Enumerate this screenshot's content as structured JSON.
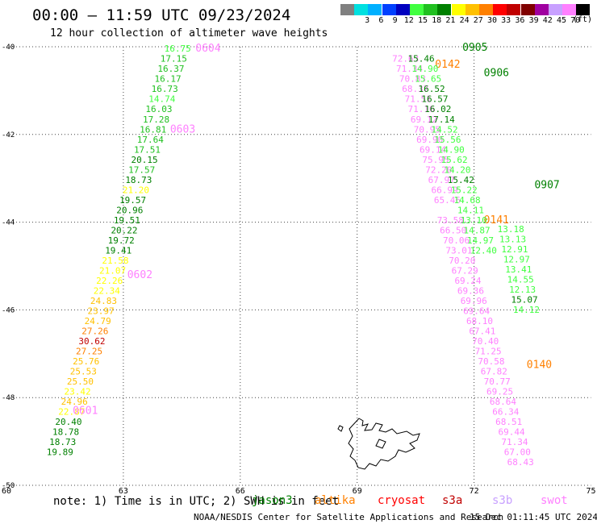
{
  "title": "00:00 – 11:59 UTC 09/23/2024",
  "subtitle": "12 hour collection of altimeter wave heights",
  "scale": {
    "unit": "(ft)",
    "bins": [
      {
        "label": "",
        "color": "#808080"
      },
      {
        "label": "3",
        "color": "#00e0e0"
      },
      {
        "label": "6",
        "color": "#00b0ff"
      },
      {
        "label": "9",
        "color": "#0040ff"
      },
      {
        "label": "12",
        "color": "#0000c0"
      },
      {
        "label": "15",
        "color": "#40ff40"
      },
      {
        "label": "18",
        "color": "#20c020"
      },
      {
        "label": "21",
        "color": "#008000"
      },
      {
        "label": "24",
        "color": "#ffff00"
      },
      {
        "label": "27",
        "color": "#ffc000"
      },
      {
        "label": "30",
        "color": "#ff8000"
      },
      {
        "label": "33",
        "color": "#ff0000"
      },
      {
        "label": "36",
        "color": "#c00000"
      },
      {
        "label": "39",
        "color": "#800000"
      },
      {
        "label": "42",
        "color": "#a000a0"
      },
      {
        "label": "45",
        "color": "#c8a0ff"
      },
      {
        "label": "70",
        "color": "#ff80ff"
      },
      {
        "label": "",
        "color": "#000000"
      }
    ]
  },
  "axes": {
    "lon_ticks": [
      "60",
      "63",
      "66",
      "69",
      "72",
      "75"
    ],
    "lat_ticks": [
      "-40",
      "-42",
      "-44",
      "-46",
      "-48",
      "-50"
    ]
  },
  "tracks": [
    {
      "time": "0601",
      "color": "#ff80ff",
      "points": [
        {
          "v": "16.75",
          "lon": 64.05,
          "lat": -40.04,
          "c": "#40ff40"
        },
        {
          "v": "17.15",
          "lon": 63.95,
          "lat": -40.27,
          "c": "#20c020"
        },
        {
          "v": "16.37",
          "lon": 63.88,
          "lat": -40.5,
          "c": "#20c020"
        },
        {
          "v": "16.17",
          "lon": 63.8,
          "lat": -40.73,
          "c": "#20c020"
        },
        {
          "v": "16.73",
          "lon": 63.72,
          "lat": -40.96,
          "c": "#20c020"
        },
        {
          "v": "14.74",
          "lon": 63.65,
          "lat": -41.19,
          "c": "#40ff40"
        },
        {
          "v": "16.03",
          "lon": 63.57,
          "lat": -41.42,
          "c": "#20c020"
        },
        {
          "v": "17.28",
          "lon": 63.5,
          "lat": -41.65,
          "c": "#20c020"
        },
        {
          "v": "16.81",
          "lon": 63.42,
          "lat": -41.88,
          "c": "#20c020"
        },
        {
          "v": "17.64",
          "lon": 63.35,
          "lat": -42.11,
          "c": "#20c020"
        },
        {
          "v": "17.51",
          "lon": 63.27,
          "lat": -42.34,
          "c": "#20c020"
        },
        {
          "v": "20.15",
          "lon": 63.2,
          "lat": -42.57,
          "c": "#008000"
        },
        {
          "v": "17.57",
          "lon": 63.13,
          "lat": -42.8,
          "c": "#20c020"
        },
        {
          "v": "18.73",
          "lon": 63.05,
          "lat": -43.03,
          "c": "#008000"
        },
        {
          "v": "21.20",
          "lon": 62.98,
          "lat": -43.26,
          "c": "#ffff00"
        },
        {
          "v": "19.57",
          "lon": 62.9,
          "lat": -43.49,
          "c": "#008000"
        },
        {
          "v": "20.96",
          "lon": 62.82,
          "lat": -43.72,
          "c": "#008000"
        },
        {
          "v": "19.51",
          "lon": 62.75,
          "lat": -43.95,
          "c": "#008000"
        },
        {
          "v": "20.22",
          "lon": 62.68,
          "lat": -44.18,
          "c": "#008000"
        },
        {
          "v": "19.72",
          "lon": 62.6,
          "lat": -44.41,
          "c": "#008000"
        },
        {
          "v": "19.41",
          "lon": 62.53,
          "lat": -44.64,
          "c": "#008000"
        },
        {
          "v": "21.58",
          "lon": 62.45,
          "lat": -44.87,
          "c": "#ffff00"
        },
        {
          "v": "21.07",
          "lon": 62.38,
          "lat": -45.1,
          "c": "#ffff00"
        },
        {
          "v": "22.26",
          "lon": 62.3,
          "lat": -45.33,
          "c": "#ffff00"
        },
        {
          "v": "22.34",
          "lon": 62.23,
          "lat": -45.56,
          "c": "#ffff00"
        },
        {
          "v": "24.83",
          "lon": 62.15,
          "lat": -45.79,
          "c": "#ffc000"
        },
        {
          "v": "23.97",
          "lon": 62.08,
          "lat": -46.02,
          "c": "#ffc000"
        },
        {
          "v": "24.79",
          "lon": 62.0,
          "lat": -46.25,
          "c": "#ffc000"
        },
        {
          "v": "27.26",
          "lon": 61.93,
          "lat": -46.48,
          "c": "#ff8000"
        },
        {
          "v": "30.62",
          "lon": 61.85,
          "lat": -46.71,
          "c": "#c00000"
        },
        {
          "v": "27.25",
          "lon": 61.78,
          "lat": -46.94,
          "c": "#ff8000"
        },
        {
          "v": "25.76",
          "lon": 61.7,
          "lat": -47.17,
          "c": "#ffc000"
        },
        {
          "v": "25.53",
          "lon": 61.63,
          "lat": -47.4,
          "c": "#ffc000"
        },
        {
          "v": "25.50",
          "lon": 61.55,
          "lat": -47.63,
          "c": "#ffc000"
        },
        {
          "v": "23.42",
          "lon": 61.48,
          "lat": -47.86,
          "c": "#ffff00"
        },
        {
          "v": "24.96",
          "lon": 61.4,
          "lat": -48.09,
          "c": "#ffc000"
        },
        {
          "v": "22.87",
          "lon": 61.33,
          "lat": -48.32,
          "c": "#ffff00"
        },
        {
          "v": "20.40",
          "lon": 61.25,
          "lat": -48.55,
          "c": "#008000"
        },
        {
          "v": "18.78",
          "lon": 61.18,
          "lat": -48.78,
          "c": "#008000"
        },
        {
          "v": "18.73",
          "lon": 61.1,
          "lat": -49.01,
          "c": "#008000"
        },
        {
          "v": "19.89",
          "lon": 61.03,
          "lat": -49.24,
          "c": "#008000"
        }
      ],
      "labels": [
        {
          "text": "0604",
          "lon": 64.85,
          "lat": -40.04,
          "c": "#ff80ff"
        },
        {
          "text": "0603",
          "lon": 64.2,
          "lat": -41.88,
          "c": "#ff80ff"
        },
        {
          "text": "0602",
          "lon": 63.1,
          "lat": -45.2,
          "c": "#ff80ff"
        },
        {
          "text": "0601",
          "lon": 61.7,
          "lat": -48.3,
          "c": "#ff80ff"
        }
      ]
    },
    {
      "time": "0140",
      "color": "#ff8000",
      "points": [
        {
          "v": "72.63",
          "lon": 69.9,
          "lat": -40.27,
          "c": "#ff80ff"
        },
        {
          "v": "71.34",
          "lon": 70.0,
          "lat": -40.5,
          "c": "#ff80ff"
        },
        {
          "v": "70.83",
          "lon": 70.08,
          "lat": -40.73,
          "c": "#ff80ff"
        },
        {
          "v": "68.37",
          "lon": 70.15,
          "lat": -40.96,
          "c": "#ff80ff"
        },
        {
          "v": "71.51",
          "lon": 70.22,
          "lat": -41.19,
          "c": "#ff80ff"
        },
        {
          "v": "71.16",
          "lon": 70.3,
          "lat": -41.42,
          "c": "#ff80ff"
        },
        {
          "v": "69.12",
          "lon": 70.37,
          "lat": -41.65,
          "c": "#ff80ff"
        },
        {
          "v": "70.95",
          "lon": 70.45,
          "lat": -41.88,
          "c": "#ff80ff"
        },
        {
          "v": "69.90",
          "lon": 70.52,
          "lat": -42.11,
          "c": "#ff80ff"
        },
        {
          "v": "69.14",
          "lon": 70.6,
          "lat": -42.34,
          "c": "#ff80ff"
        },
        {
          "v": "75.95",
          "lon": 70.67,
          "lat": -42.57,
          "c": "#ff80ff"
        },
        {
          "v": "72.20",
          "lon": 70.75,
          "lat": -42.8,
          "c": "#ff80ff"
        },
        {
          "v": "67.97",
          "lon": 70.82,
          "lat": -43.03,
          "c": "#ff80ff"
        },
        {
          "v": "66.99",
          "lon": 70.9,
          "lat": -43.26,
          "c": "#ff80ff"
        },
        {
          "v": "65.46",
          "lon": 70.97,
          "lat": -43.49,
          "c": "#ff80ff"
        },
        {
          "v": "73.58",
          "lon": 71.05,
          "lat": -43.95,
          "c": "#ff80ff"
        },
        {
          "v": "66.50",
          "lon": 71.12,
          "lat": -44.18,
          "c": "#ff80ff"
        },
        {
          "v": "70.06",
          "lon": 71.2,
          "lat": -44.41,
          "c": "#ff80ff"
        },
        {
          "v": "73.01",
          "lon": 71.27,
          "lat": -44.64,
          "c": "#ff80ff"
        },
        {
          "v": "70.20",
          "lon": 71.35,
          "lat": -44.87,
          "c": "#ff80ff"
        },
        {
          "v": "67.29",
          "lon": 71.42,
          "lat": -45.1,
          "c": "#ff80ff"
        },
        {
          "v": "69.24",
          "lon": 71.5,
          "lat": -45.33,
          "c": "#ff80ff"
        },
        {
          "v": "69.36",
          "lon": 71.57,
          "lat": -45.56,
          "c": "#ff80ff"
        },
        {
          "v": "69.96",
          "lon": 71.65,
          "lat": -45.79,
          "c": "#ff80ff"
        },
        {
          "v": "69.64",
          "lon": 71.72,
          "lat": -46.02,
          "c": "#ff80ff"
        },
        {
          "v": "68.10",
          "lon": 71.8,
          "lat": -46.25,
          "c": "#ff80ff"
        },
        {
          "v": "67.41",
          "lon": 71.87,
          "lat": -46.48,
          "c": "#ff80ff"
        },
        {
          "v": "70.40",
          "lon": 71.95,
          "lat": -46.71,
          "c": "#ff80ff"
        },
        {
          "v": "71.25",
          "lon": 72.02,
          "lat": -46.94,
          "c": "#ff80ff"
        },
        {
          "v": "70.58",
          "lon": 72.1,
          "lat": -47.17,
          "c": "#ff80ff"
        },
        {
          "v": "67.82",
          "lon": 72.17,
          "lat": -47.4,
          "c": "#ff80ff"
        },
        {
          "v": "70.77",
          "lon": 72.25,
          "lat": -47.63,
          "c": "#ff80ff"
        },
        {
          "v": "69.25",
          "lon": 72.32,
          "lat": -47.86,
          "c": "#ff80ff"
        },
        {
          "v": "68.64",
          "lon": 72.4,
          "lat": -48.09,
          "c": "#ff80ff"
        },
        {
          "v": "66.34",
          "lon": 72.47,
          "lat": -48.32,
          "c": "#ff80ff"
        },
        {
          "v": "68.51",
          "lon": 72.55,
          "lat": -48.55,
          "c": "#ff80ff"
        },
        {
          "v": "69.44",
          "lon": 72.62,
          "lat": -48.78,
          "c": "#ff80ff"
        },
        {
          "v": "71.34",
          "lon": 72.7,
          "lat": -49.01,
          "c": "#ff80ff"
        },
        {
          "v": "67.00",
          "lon": 72.77,
          "lat": -49.24,
          "c": "#ff80ff"
        },
        {
          "v": "68.43",
          "lon": 72.85,
          "lat": -49.47,
          "c": "#ff80ff"
        }
      ],
      "labels": [
        {
          "text": "0142",
          "lon": 71.0,
          "lat": -40.4,
          "c": "#ff8000"
        },
        {
          "text": "0141",
          "lon": 72.25,
          "lat": -43.95,
          "c": "#ff8000"
        },
        {
          "text": "0140",
          "lon": 73.35,
          "lat": -47.25,
          "c": "#ff8000"
        }
      ]
    },
    {
      "time": "0905",
      "color": "#008000",
      "points": [
        {
          "v": "15.46",
          "lon": 70.3,
          "lat": -40.27,
          "c": "#008000"
        },
        {
          "v": "14.90",
          "lon": 70.4,
          "lat": -40.5,
          "c": "#40ff40"
        },
        {
          "v": "15.65",
          "lon": 70.48,
          "lat": -40.73,
          "c": "#40ff40"
        },
        {
          "v": "16.52",
          "lon": 70.57,
          "lat": -40.96,
          "c": "#008000"
        },
        {
          "v": "16.57",
          "lon": 70.65,
          "lat": -41.19,
          "c": "#008000"
        },
        {
          "v": "16.02",
          "lon": 70.73,
          "lat": -41.42,
          "c": "#008000"
        },
        {
          "v": "17.14",
          "lon": 70.82,
          "lat": -41.65,
          "c": "#008000"
        },
        {
          "v": "14.52",
          "lon": 70.9,
          "lat": -41.88,
          "c": "#40ff40"
        },
        {
          "v": "15.56",
          "lon": 70.98,
          "lat": -42.11,
          "c": "#40ff40"
        },
        {
          "v": "14.90",
          "lon": 71.07,
          "lat": -42.34,
          "c": "#40ff40"
        },
        {
          "v": "15.62",
          "lon": 71.15,
          "lat": -42.57,
          "c": "#40ff40"
        },
        {
          "v": "14.20",
          "lon": 71.23,
          "lat": -42.8,
          "c": "#40ff40"
        },
        {
          "v": "15.42",
          "lon": 71.32,
          "lat": -43.03,
          "c": "#008000"
        },
        {
          "v": "15.22",
          "lon": 71.4,
          "lat": -43.26,
          "c": "#40ff40"
        },
        {
          "v": "14.68",
          "lon": 71.48,
          "lat": -43.49,
          "c": "#40ff40"
        },
        {
          "v": "14.11",
          "lon": 71.57,
          "lat": -43.72,
          "c": "#40ff40"
        },
        {
          "v": "13.10",
          "lon": 71.65,
          "lat": -43.95,
          "c": "#40ff40"
        },
        {
          "v": "14.87",
          "lon": 71.73,
          "lat": -44.18,
          "c": "#40ff40"
        },
        {
          "v": "14.97",
          "lon": 71.82,
          "lat": -44.41,
          "c": "#40ff40"
        },
        {
          "v": "12.40",
          "lon": 71.9,
          "lat": -44.64,
          "c": "#40ff40"
        },
        {
          "v": "13.18",
          "lon": 72.6,
          "lat": -44.15,
          "c": "#40ff40"
        },
        {
          "v": "13.13",
          "lon": 72.65,
          "lat": -44.38,
          "c": "#40ff40"
        },
        {
          "v": "12.91",
          "lon": 72.7,
          "lat": -44.61,
          "c": "#40ff40"
        },
        {
          "v": "12.97",
          "lon": 72.75,
          "lat": -44.84,
          "c": "#40ff40"
        },
        {
          "v": "13.41",
          "lon": 72.8,
          "lat": -45.07,
          "c": "#40ff40"
        },
        {
          "v": "14.55",
          "lon": 72.85,
          "lat": -45.3,
          "c": "#40ff40"
        },
        {
          "v": "12.13",
          "lon": 72.9,
          "lat": -45.53,
          "c": "#40ff40"
        },
        {
          "v": "15.07",
          "lon": 72.95,
          "lat": -45.76,
          "c": "#008000"
        },
        {
          "v": "14.12",
          "lon": 73.0,
          "lat": -45.99,
          "c": "#40ff40"
        }
      ],
      "labels": [
        {
          "text": "0905",
          "lon": 71.7,
          "lat": -40.02,
          "c": "#008000"
        },
        {
          "text": "0906",
          "lon": 72.25,
          "lat": -40.6,
          "c": "#008000"
        },
        {
          "text": "0907",
          "lon": 73.55,
          "lat": -43.15,
          "c": "#008000"
        }
      ]
    }
  ],
  "note": "note: 1) Time is in UTC; 2) SWH is in feet",
  "satellites": [
    {
      "name": "jason3",
      "color": "#008000"
    },
    {
      "name": "altika",
      "color": "#ff8000"
    },
    {
      "name": "cryosat",
      "color": "#ff0000"
    },
    {
      "name": "s3a",
      "color": "#c00000"
    },
    {
      "name": "s3b",
      "color": "#c8a0ff"
    },
    {
      "name": "swot",
      "color": "#ff80ff"
    }
  ],
  "footer": {
    "credit": "NOAA/NESDIS Center for Satellite Applications and Research",
    "timestamp": "15 Dec 01:11:45 UTC 2024"
  }
}
